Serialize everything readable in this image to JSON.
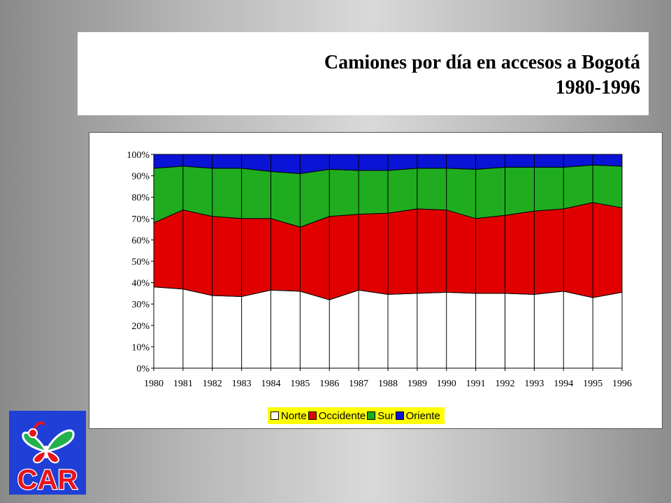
{
  "title": {
    "line1": "Camiones por día en accesos a Bogotá",
    "line2": "1980-1996"
  },
  "logo": {
    "text": "CAR",
    "icon": "butterfly-icon",
    "background": "#1f3fd6",
    "letter_color": "#e8141b"
  },
  "chart_data": {
    "type": "area",
    "stacked": "percent",
    "title": "Camiones por día en accesos a Bogotá 1980-1996",
    "x": [
      "1980",
      "1981",
      "1982",
      "1983",
      "1984",
      "1985",
      "1986",
      "1987",
      "1988",
      "1989",
      "1990",
      "1991",
      "1992",
      "1993",
      "1994",
      "1995",
      "1996"
    ],
    "ylim": [
      0,
      100
    ],
    "yticks": [
      "0%",
      "10%",
      "20%",
      "30%",
      "40%",
      "50%",
      "60%",
      "70%",
      "80%",
      "90%",
      "100%"
    ],
    "grid": false,
    "legend": "bottom",
    "series": [
      {
        "name": "Norte",
        "color": "#ffffff",
        "values": [
          38,
          37,
          34,
          33.5,
          36.5,
          36,
          32,
          36.5,
          34.5,
          35,
          35.5,
          35,
          35,
          34.5,
          36,
          33,
          35.5
        ]
      },
      {
        "name": "Occidente",
        "color": "#e00000",
        "values": [
          30,
          37,
          37,
          36.5,
          33.5,
          30,
          39,
          35.5,
          38,
          39.5,
          38.5,
          35,
          36.5,
          39,
          38.5,
          44.5,
          39.5
        ]
      },
      {
        "name": "Sur",
        "color": "#1fad1f",
        "values": [
          25.5,
          20.5,
          22.5,
          23.5,
          22,
          25,
          22,
          20.5,
          20,
          19,
          19.5,
          23,
          22.5,
          20.5,
          19.5,
          17.5,
          19.5
        ]
      },
      {
        "name": "Oriente",
        "color": "#0a14d6",
        "values": [
          6.5,
          5.5,
          6.5,
          6.5,
          8,
          9,
          7,
          7.5,
          7.5,
          6.5,
          6.5,
          7,
          6,
          6,
          6,
          5,
          5.5
        ]
      }
    ]
  }
}
